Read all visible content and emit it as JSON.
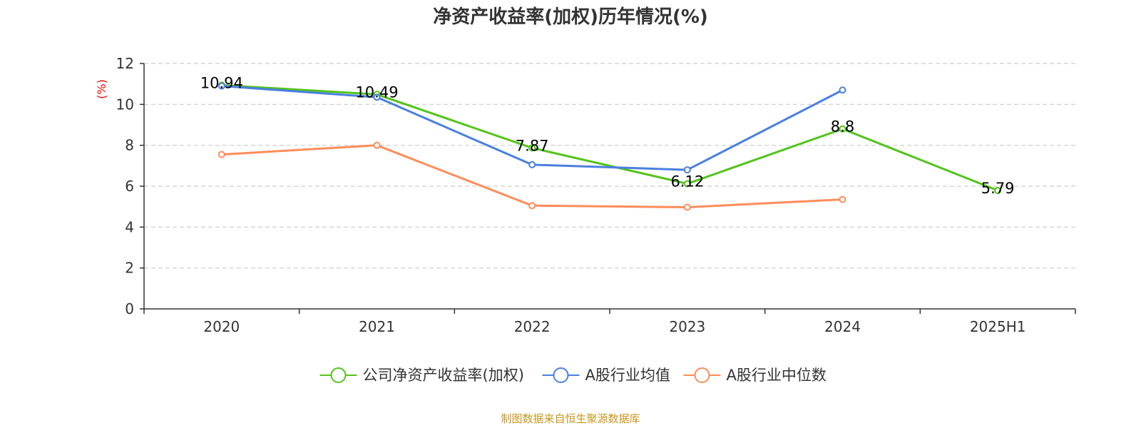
{
  "colors": {
    "company": "#52c41a",
    "industry_mean": "#4a7fe0",
    "industry_median": "#ff8c5a",
    "source": "#c8961e",
    "unit": "#ff0000"
  },
  "chart_data": {
    "type": "line",
    "title": "净资产收益率(加权)历年情况(%)",
    "ylabel": "(%)",
    "categories": [
      "2020",
      "2021",
      "2022",
      "2023",
      "2024",
      "2025H1"
    ],
    "y_ticks": [
      "0",
      "2",
      "4",
      "6",
      "8",
      "10",
      "12"
    ],
    "ylim": [
      0,
      12
    ],
    "grid": true,
    "legend_position": "bottom",
    "series": [
      {
        "name": "公司净资产收益率(加权)",
        "values": [
          10.94,
          10.49,
          7.87,
          6.12,
          8.8,
          5.79
        ],
        "labels": [
          "10.94",
          "10.49",
          "7.87",
          "6.12",
          "8.8",
          "5.79"
        ]
      },
      {
        "name": "A股行业均值",
        "values": [
          10.9,
          10.35,
          7.05,
          6.8,
          10.7,
          null
        ]
      },
      {
        "name": "A股行业中位数",
        "values": [
          7.55,
          8.0,
          5.05,
          4.97,
          5.35,
          null
        ]
      }
    ]
  },
  "source_text": "制图数据来自恒生聚源数据库"
}
